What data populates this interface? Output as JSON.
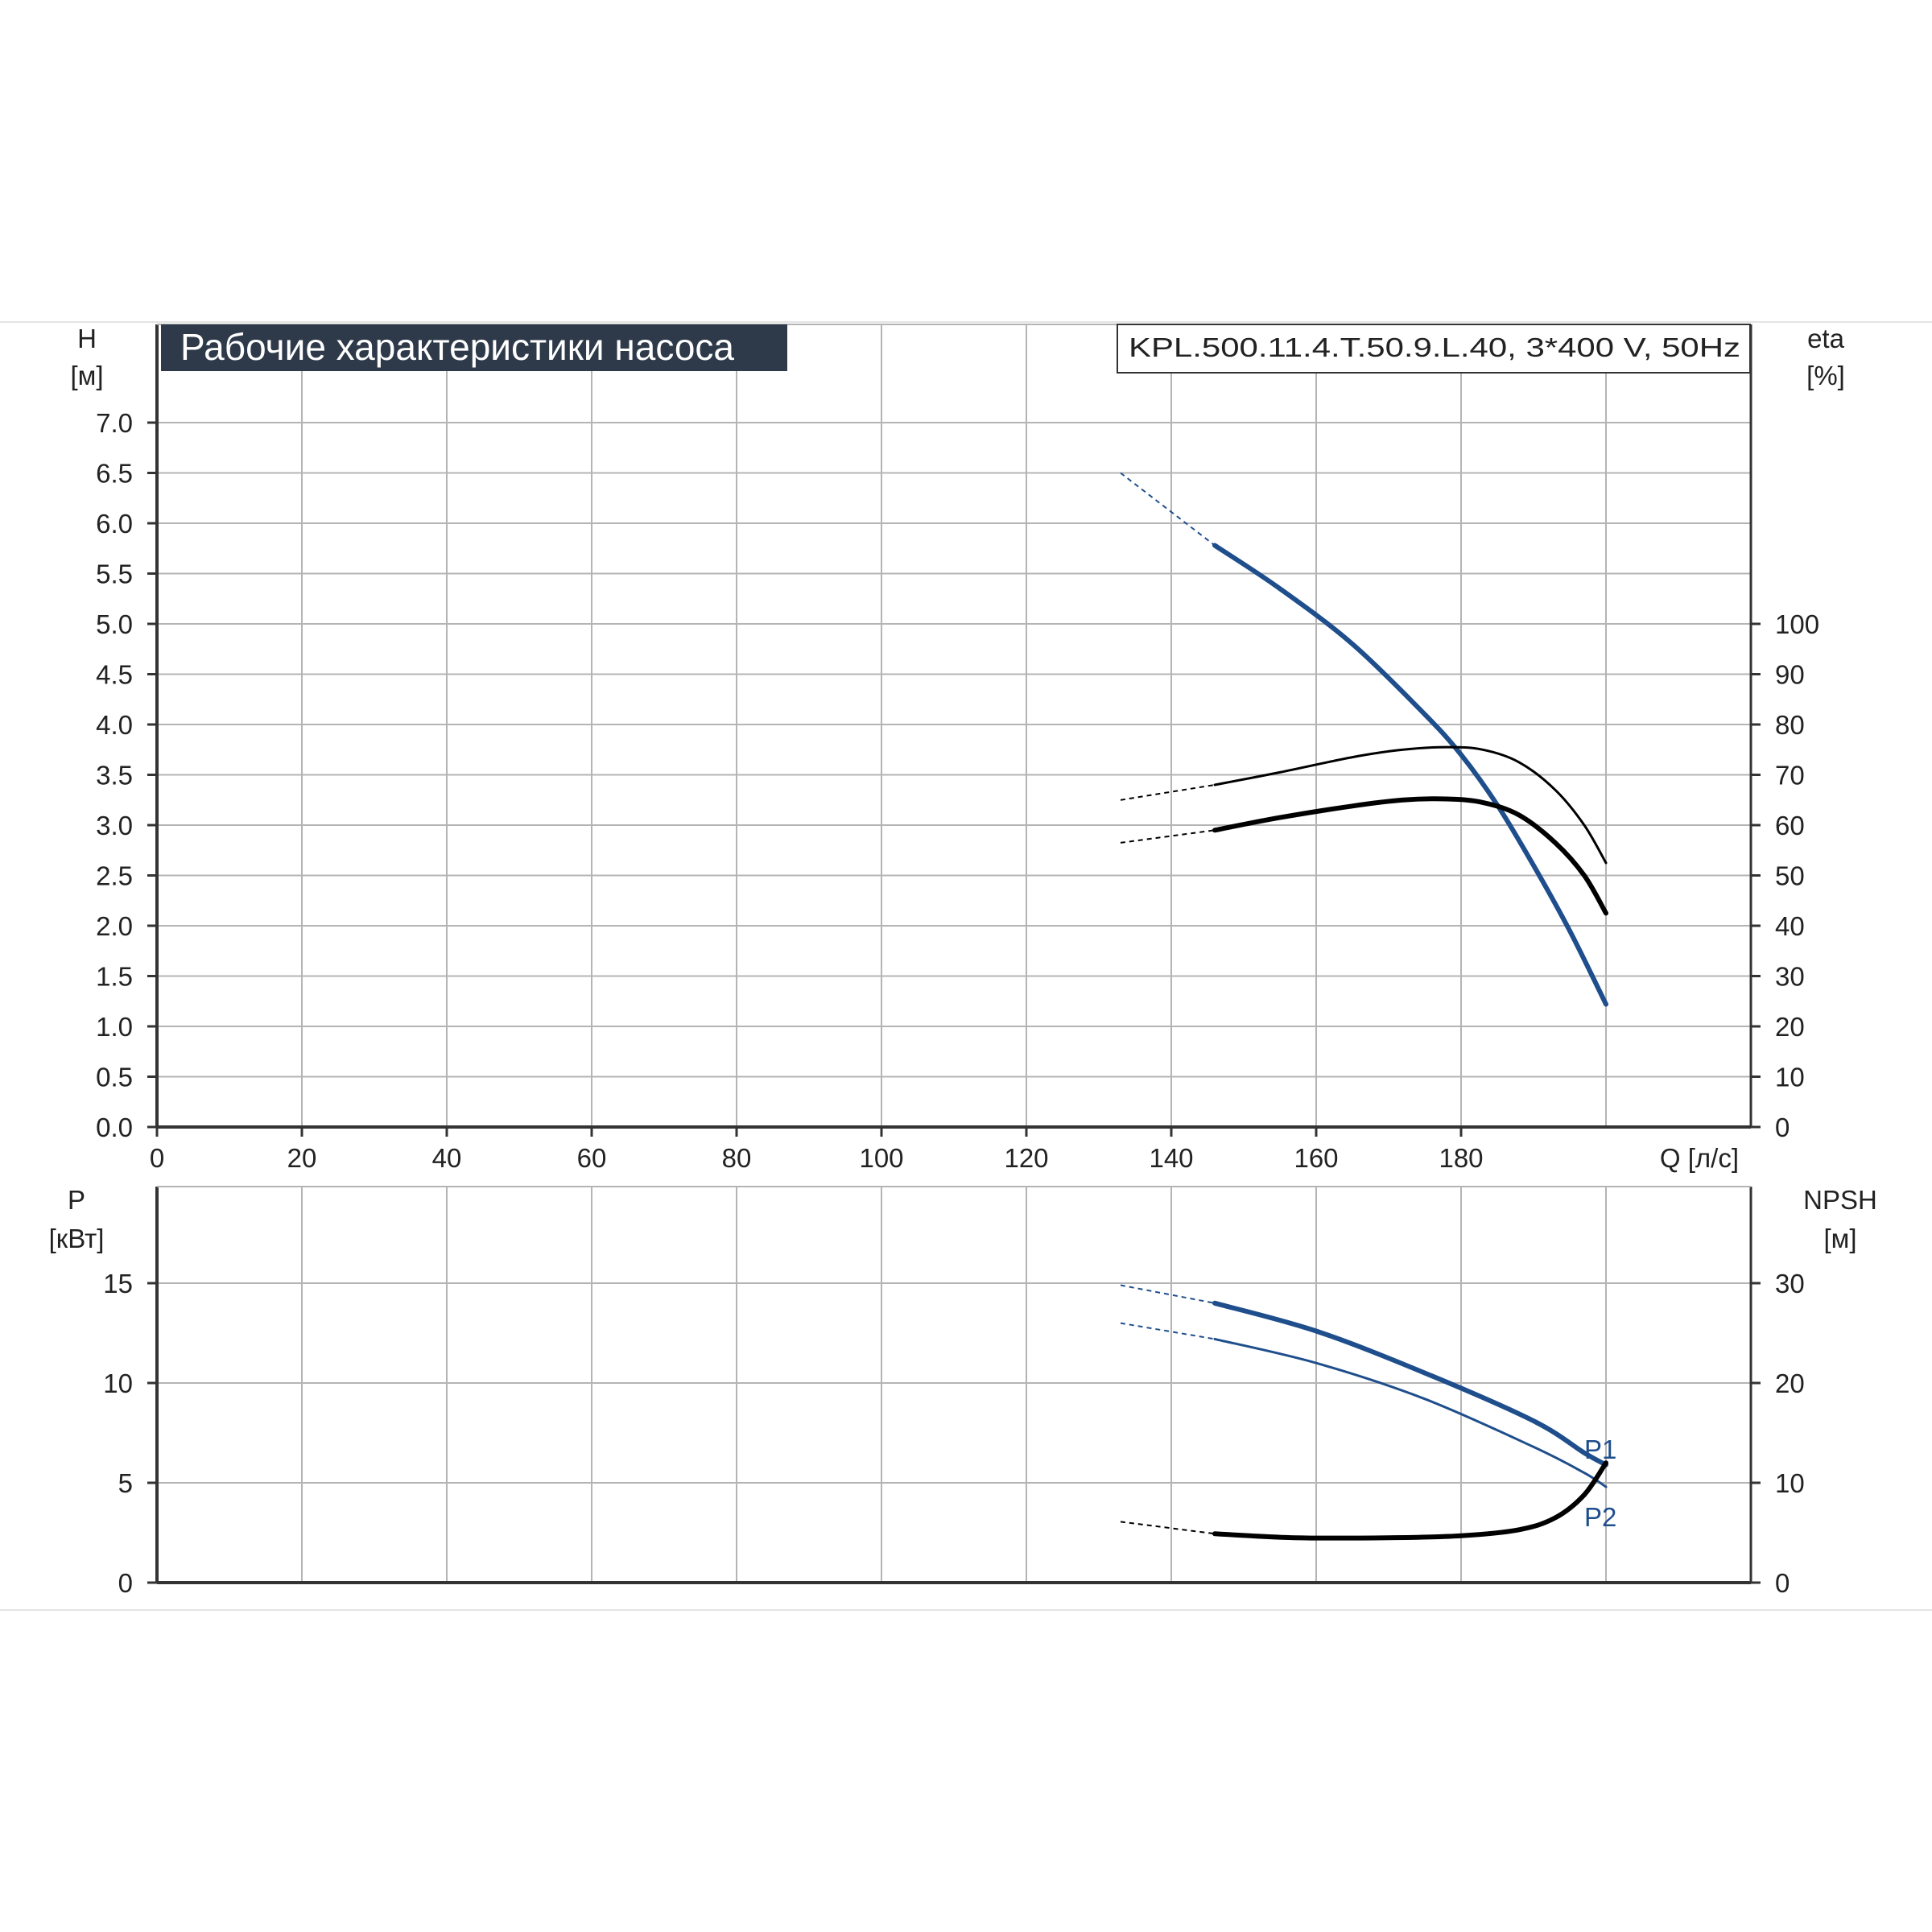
{
  "title": "Рабочие характеристики насоса",
  "model": "KPL.500.11.4.T.50.9.L.40, 3*400 V, 50Hz",
  "colors": {
    "blue": "#1f4e8c",
    "black": "#000000",
    "grid": "#b4b4b4",
    "title_bg": "#2e3a4a"
  },
  "chart_data": [
    {
      "type": "line",
      "name": "upper",
      "x_axis": {
        "label": "Q [л/с]",
        "ticks": [
          "0",
          "20",
          "40",
          "60",
          "80",
          "100",
          "120",
          "140",
          "160",
          "180"
        ],
        "range": [
          0,
          220
        ]
      },
      "y_left": {
        "label_top": "H",
        "label_unit": "[м]",
        "ticks": [
          "0.0",
          "0.5",
          "1.0",
          "1.5",
          "2.0",
          "2.5",
          "3.0",
          "3.5",
          "4.0",
          "4.5",
          "5.0",
          "5.5",
          "6.0",
          "6.5",
          "7.0"
        ],
        "range": [
          0,
          7.0
        ]
      },
      "y_right": {
        "label_top": "eta",
        "label_unit": "[%]",
        "ticks": [
          "0",
          "10",
          "20",
          "30",
          "40",
          "50",
          "60",
          "70",
          "80",
          "90",
          "100"
        ],
        "range": [
          0,
          140
        ]
      },
      "grid": true,
      "series": [
        {
          "axis": "left",
          "color": "#1f4e8c",
          "width": 6,
          "dashed_x": [
            133,
            146
          ],
          "dashed_y": [
            6.5,
            5.78
          ],
          "x": [
            146,
            155,
            165,
            175,
            180,
            185,
            190,
            195,
            200
          ],
          "y": [
            5.78,
            5.35,
            4.8,
            4.1,
            3.7,
            3.2,
            2.6,
            1.95,
            1.22
          ]
        },
        {
          "axis": "right",
          "color": "#000000",
          "width": 3,
          "dashed_x": [
            133,
            146
          ],
          "dashed_y": [
            65,
            68
          ],
          "x": [
            146,
            155,
            165,
            172,
            178,
            183,
            188,
            193,
            197,
            200
          ],
          "y": [
            68,
            70.5,
            73.5,
            75,
            75.5,
            75,
            72.5,
            67,
            60,
            52.5
          ]
        },
        {
          "axis": "right",
          "color": "#000000",
          "width": 6,
          "dashed_x": [
            133,
            146
          ],
          "dashed_y": [
            56.5,
            59
          ],
          "x": [
            146,
            155,
            165,
            172,
            178,
            183,
            188,
            193,
            197,
            200
          ],
          "y": [
            59,
            61.5,
            63.8,
            65,
            65.2,
            64.5,
            62,
            56.5,
            50,
            42.5
          ]
        }
      ]
    },
    {
      "type": "line",
      "name": "lower",
      "y_left": {
        "label_top": "P",
        "label_unit": "[кВт]",
        "ticks": [
          "0",
          "5",
          "10",
          "15"
        ],
        "range": [
          0,
          15
        ]
      },
      "y_right": {
        "label_top": "NPSH",
        "label_unit": "[м]",
        "ticks": [
          "0",
          "10",
          "20",
          "30"
        ],
        "range": [
          0,
          30
        ]
      },
      "grid": true,
      "series": [
        {
          "name": "P1",
          "axis": "left",
          "color": "#1f4e8c",
          "width": 6,
          "dashed_x": [
            133,
            146
          ],
          "dashed_y": [
            14.9,
            14.0
          ],
          "x": [
            146,
            160,
            175,
            190,
            197,
            200
          ],
          "y": [
            14.0,
            12.6,
            10.5,
            8.1,
            6.5,
            5.9
          ]
        },
        {
          "name": "P2",
          "axis": "left",
          "color": "#1f4e8c",
          "width": 3,
          "dashed_x": [
            133,
            146
          ],
          "dashed_y": [
            13.0,
            12.2
          ],
          "x": [
            146,
            160,
            175,
            190,
            197,
            200
          ],
          "y": [
            12.2,
            11.0,
            9.2,
            6.8,
            5.5,
            4.8
          ]
        },
        {
          "name": "NPSH",
          "axis": "right",
          "color": "#000000",
          "width": 6,
          "dashed_x": [
            133,
            146
          ],
          "dashed_y": [
            6.1,
            4.9
          ],
          "x": [
            146,
            157,
            170,
            180,
            188,
            193,
            197,
            200
          ],
          "y": [
            4.9,
            4.5,
            4.5,
            4.7,
            5.3,
            6.5,
            8.8,
            12.0
          ]
        }
      ],
      "labels": [
        "P1",
        "P2"
      ]
    }
  ]
}
